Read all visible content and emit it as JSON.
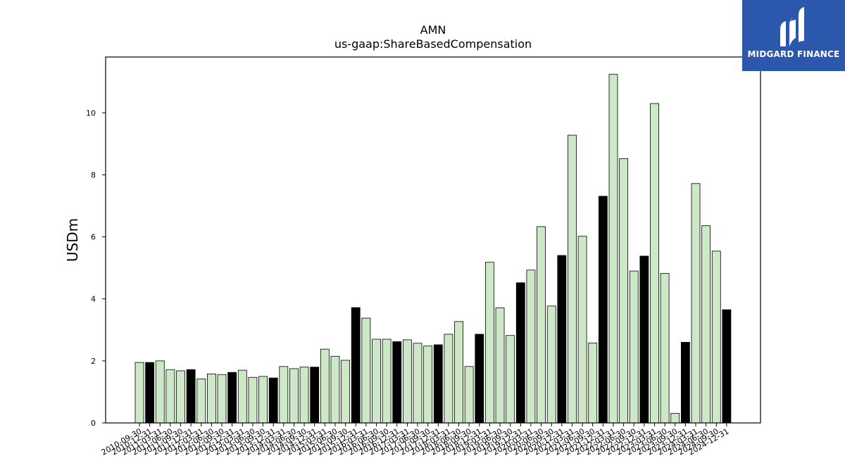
{
  "logo": {
    "text": "MIDGARD FINANCE"
  },
  "chart_data": {
    "type": "bar",
    "title": "AMN",
    "subtitle": "us-gaap:ShareBasedCompensation",
    "ylabel": "USDm",
    "xlabel": "",
    "ylim": [
      0,
      11.8
    ],
    "yticks": [
      0,
      2,
      4,
      6,
      8,
      10
    ],
    "grid": false,
    "colors": {
      "quarter": "#cce8c6",
      "annual": "#000000",
      "edge": "#000000"
    },
    "categories": [
      "2010-09-30",
      "2010-12-31",
      "2011-03-31",
      "2011-06-30",
      "2011-09-30",
      "2011-12-31",
      "2012-03-31",
      "2012-06-30",
      "2012-09-30",
      "2012-12-31",
      "2013-03-31",
      "2013-06-30",
      "2013-09-30",
      "2013-12-31",
      "2014-03-31",
      "2014-06-30",
      "2014-09-30",
      "2014-12-31",
      "2015-03-31",
      "2015-06-30",
      "2015-09-30",
      "2015-12-31",
      "2016-03-31",
      "2016-06-30",
      "2016-09-30",
      "2016-12-31",
      "2017-03-31",
      "2017-06-30",
      "2017-09-30",
      "2017-12-31",
      "2018-03-31",
      "2018-06-30",
      "2018-09-30",
      "2018-12-31",
      "2019-03-31",
      "2019-06-30",
      "2019-09-30",
      "2019-12-31",
      "2020-03-31",
      "2020-06-30",
      "2020-09-30",
      "2020-12-31",
      "2021-03-31",
      "2021-06-30",
      "2021-09-30",
      "2021-12-31",
      "2022-03-31",
      "2022-06-30",
      "2022-09-30",
      "2022-12-31",
      "2023-03-31",
      "2023-06-30",
      "2023-09-30",
      "2023-12-31",
      "2024-03-31",
      "2024-06-30",
      "2024-09-30",
      "2024-12-31"
    ],
    "values": [
      1.95,
      1.95,
      2.0,
      1.72,
      1.68,
      1.72,
      1.42,
      1.58,
      1.56,
      1.63,
      1.7,
      1.47,
      1.5,
      1.45,
      1.82,
      1.75,
      1.8,
      1.8,
      2.38,
      2.15,
      2.02,
      3.72,
      3.38,
      2.7,
      2.7,
      2.62,
      2.68,
      2.57,
      2.48,
      2.52,
      2.86,
      3.27,
      1.82,
      2.86,
      5.18,
      3.71,
      2.82,
      4.52,
      4.93,
      6.33,
      3.77,
      5.4,
      9.28,
      6.02,
      2.58,
      7.31,
      11.24,
      8.52,
      4.9,
      5.38,
      10.3,
      4.82,
      0.31,
      2.6,
      7.72,
      6.36,
      5.54,
      3.65
    ],
    "annual": [
      false,
      true,
      false,
      false,
      false,
      true,
      false,
      false,
      false,
      true,
      false,
      false,
      false,
      true,
      false,
      false,
      false,
      true,
      false,
      false,
      false,
      true,
      false,
      false,
      false,
      true,
      false,
      false,
      false,
      true,
      false,
      false,
      false,
      true,
      false,
      false,
      false,
      true,
      false,
      false,
      false,
      true,
      false,
      false,
      false,
      true,
      false,
      false,
      false,
      true,
      false,
      false,
      false,
      true,
      false,
      false,
      false,
      true
    ]
  }
}
